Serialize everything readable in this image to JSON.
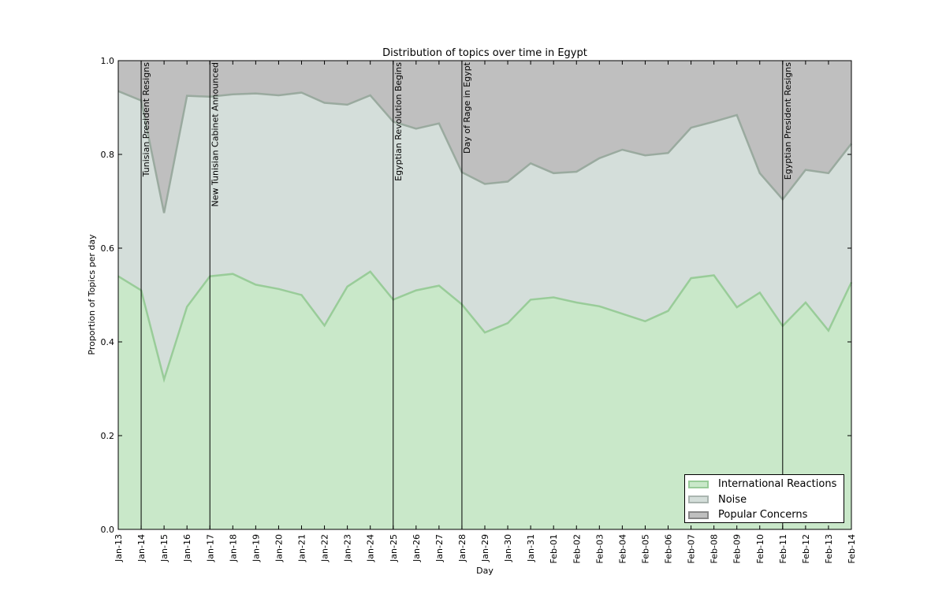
{
  "chart_data": {
    "type": "area",
    "stacked": true,
    "title": "Distribution of topics over time in Egypt",
    "xlabel": "Day",
    "ylabel": "Proportion of Topics per day",
    "ylim": [
      0,
      1.0
    ],
    "yticks": [
      "0.0",
      "0.2",
      "0.4",
      "0.6",
      "0.8",
      "1.0"
    ],
    "categories": [
      "Jan-13",
      "Jan-14",
      "Jan-15",
      "Jan-16",
      "Jan-17",
      "Jan-18",
      "Jan-19",
      "Jan-20",
      "Jan-21",
      "Jan-22",
      "Jan-23",
      "Jan-24",
      "Jan-25",
      "Jan-26",
      "Jan-27",
      "Jan-28",
      "Jan-29",
      "Jan-30",
      "Jan-31",
      "Feb-01",
      "Feb-02",
      "Feb-03",
      "Feb-04",
      "Feb-05",
      "Feb-06",
      "Feb-07",
      "Feb-08",
      "Feb-09",
      "Feb-10",
      "Feb-11",
      "Feb-12",
      "Feb-13",
      "Feb-14"
    ],
    "series": [
      {
        "name": "International Reactions",
        "color": "#c9e8c9",
        "line": "#99cc99",
        "values": [
          0.54,
          0.51,
          0.32,
          0.475,
          0.54,
          0.545,
          0.522,
          0.513,
          0.5,
          0.435,
          0.518,
          0.55,
          0.49,
          0.51,
          0.52,
          0.48,
          0.42,
          0.44,
          0.49,
          0.495,
          0.484,
          0.476,
          0.46,
          0.444,
          0.466,
          0.536,
          0.542,
          0.474,
          0.505,
          0.434,
          0.484,
          0.424,
          0.527
        ]
      },
      {
        "name": "Noise",
        "color": "#d4deda",
        "line": "#9aaa9f",
        "cumulative": [
          0.935,
          0.915,
          0.675,
          0.925,
          0.923,
          0.928,
          0.93,
          0.926,
          0.932,
          0.91,
          0.906,
          0.926,
          0.87,
          0.855,
          0.866,
          0.762,
          0.737,
          0.742,
          0.781,
          0.76,
          0.763,
          0.792,
          0.81,
          0.798,
          0.803,
          0.857,
          0.87,
          0.884,
          0.76,
          0.704,
          0.767,
          0.76,
          0.823
        ]
      },
      {
        "name": "Popular Concerns",
        "color": "#bfbfbf",
        "line": "#bfbfbf",
        "cumulative": [
          1,
          1,
          1,
          1,
          1,
          1,
          1,
          1,
          1,
          1,
          1,
          1,
          1,
          1,
          1,
          1,
          1,
          1,
          1,
          1,
          1,
          1,
          1,
          1,
          1,
          1,
          1,
          1,
          1,
          1,
          1,
          1,
          1
        ]
      }
    ],
    "events": [
      {
        "x": "Jan-14",
        "label": "Tunisian President Resigns"
      },
      {
        "x": "Jan-17",
        "label": "New Tunisian Cabinet Announced"
      },
      {
        "x": "Jan-25",
        "label": "Egyptian Revolution Begins"
      },
      {
        "x": "Jan-28",
        "label": "Day of Rage in Egypt"
      },
      {
        "x": "Feb-11",
        "label": "Egyptian President Resigns"
      }
    ],
    "grid": false,
    "legend_position": "lower-right"
  }
}
